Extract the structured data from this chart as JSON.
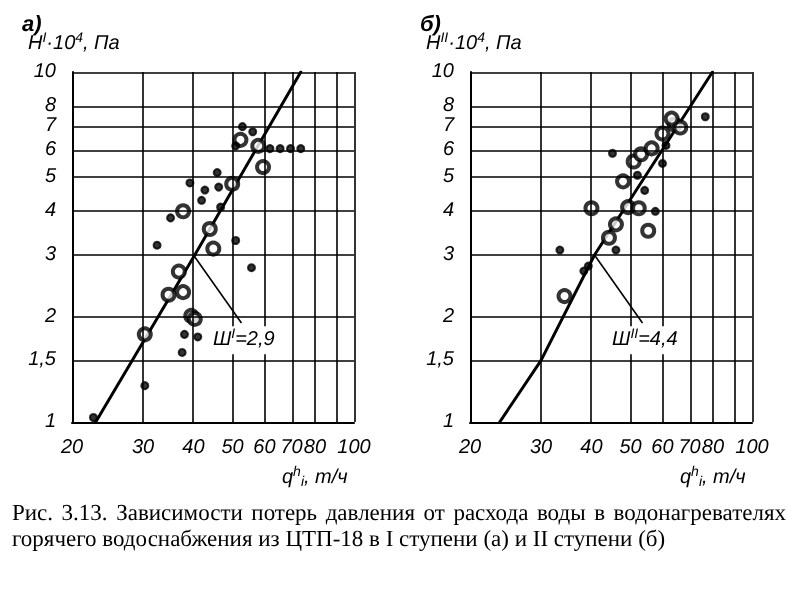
{
  "chart_data": [
    {
      "type": "scatter",
      "title": "а)",
      "xlabel": "q$^{h}$$_{i}$, т/ч",
      "ylabel": "H$^{I}$·10$^{4}$, Па",
      "log": "xy",
      "grid": true,
      "xlim": [
        20,
        100
      ],
      "ylim": [
        1,
        10
      ],
      "xticks": [
        20,
        30,
        40,
        50,
        60,
        70,
        80,
        {
          "value": 90,
          "label": null
        },
        100
      ],
      "yticks": [
        1,
        {
          "value": 1.5,
          "label": "1,5"
        },
        2,
        3,
        4,
        5,
        6,
        7,
        8,
        10
      ],
      "annotations": [
        {
          "text": "Ш$^{I}$=2,9",
          "x": 40,
          "y": 3
        },
        "Рис. 3.13. Зависимости потерь давления от расхода воды в водонагревателях горячего водоснабжения из ЦТП-18 в I ступени (а) и II ступени (б)"
      ],
      "series": [
        {
          "marker": "circle",
          "color": "#000000",
          "x": [
            30.3,
            36.8,
            34.7,
            37.7,
            39.5,
            40.3,
            37.7,
            43.9,
            44.8,
            49.9,
            52.3,
            57.9,
            59.5
          ],
          "values": [
            1.78,
            2.69,
            2.31,
            2.35,
            2.01,
            1.97,
            4.0,
            3.56,
            3.13,
            4.79,
            6.4,
            6.15,
            5.35
          ]
        },
        {
          "color": "#000000",
          "x": [
            22.6,
            30.3,
            37.5,
            38,
            41,
            32.5,
            35.1,
            39.2,
            41.9,
            42.7,
            45.8,
            46.2,
            46.7,
            50.9,
            55.7,
            52.9,
            50.9,
            61.9,
            65.6,
            69.6,
            73.8,
            56.1
          ],
          "values": [
            1.03,
            1.27,
            1.58,
            1.78,
            1.75,
            3.2,
            3.83,
            4.82,
            4.3,
            4.6,
            5.16,
            4.69,
            4.11,
            3.3,
            2.76,
            6.98,
            6.15,
            6.04,
            6.04,
            6.04,
            6.04,
            6.75
          ]
        },
        {
          "type": "line",
          "marker": "none",
          "color": "#000000",
          "x": [
            22.9,
            40.3,
            73.8
          ],
          "values": [
            1,
            3,
            10
          ]
        }
      ]
    },
    {
      "type": "scatter",
      "title": "б)",
      "xlabel": "q$^{h}$$_{i}$, т/ч",
      "ylabel": "H$^{II}$·10$^{4}$, Па",
      "log": "xy",
      "grid": true,
      "xlim": [
        20,
        100
      ],
      "ylim": [
        1,
        10
      ],
      "xticks": [
        20,
        30,
        40,
        50,
        60,
        70,
        80,
        {
          "value": 90,
          "label": null
        },
        100
      ],
      "yticks": [
        1,
        {
          "value": 1.5,
          "label": "1,5"
        },
        2,
        3,
        4,
        5,
        6,
        7,
        8,
        10
      ],
      "annotations": [
        {
          "text": "Ш$^{II}$=4,4",
          "x": 40.7,
          "y": 3
        }
      ],
      "series": [
        {
          "marker": "circle",
          "color": "#000000",
          "x": [
            34.3,
            40,
            47.9,
            49.3,
            52.4,
            55.3,
            46,
            44.2,
            50.9,
            53.1,
            56.4,
            60,
            64.3,
            66.4,
            63.2
          ],
          "values": [
            2.29,
            4.08,
            4.87,
            4.11,
            4.08,
            3.52,
            3.67,
            3.36,
            5.55,
            5.82,
            6.05,
            6.67,
            7.08,
            6.94,
            7.36
          ]
        },
        {
          "color": "#000000",
          "x": [
            39.3,
            38.3,
            45.1,
            46,
            33.4,
            57.6,
            60,
            61.2,
            76.6,
            52,
            54.2
          ],
          "values": [
            2.79,
            2.7,
            5.86,
            3.1,
            3.1,
            4,
            5.48,
            6.17,
            7.45,
            5.07,
            4.59
          ]
        },
        {
          "type": "line",
          "marker": "none",
          "color": "#000000",
          "x": [
            23.7,
            30,
            40.7,
            79.8
          ],
          "values": [
            1,
            1.5,
            3,
            10
          ]
        }
      ]
    }
  ]
}
